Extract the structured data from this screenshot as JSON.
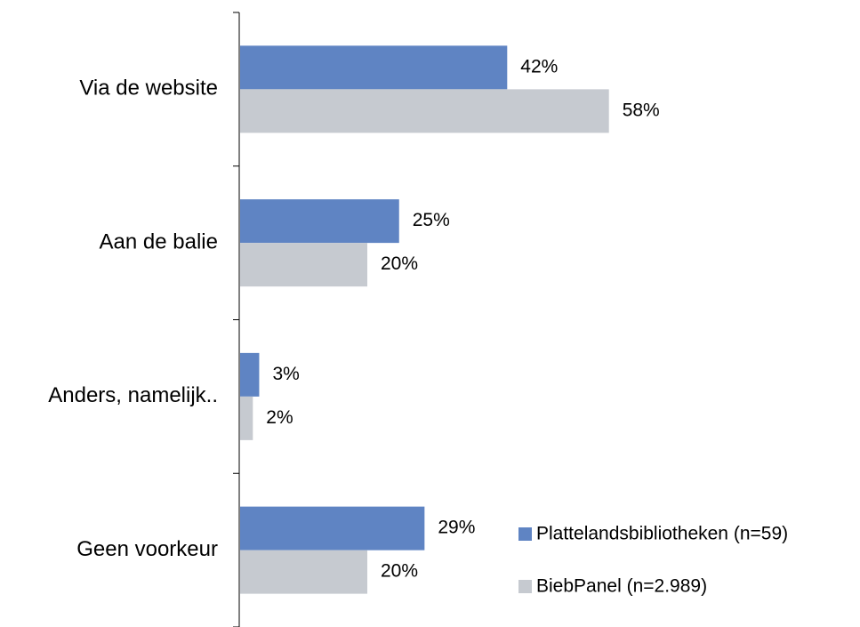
{
  "chart_data": {
    "type": "bar",
    "orientation": "horizontal",
    "categories": [
      "Via de website",
      "Aan de balie",
      "Anders, namelijk..",
      "Geen voorkeur"
    ],
    "series": [
      {
        "name": "Plattelandsbibliotheken (n=59)",
        "color": "#5f84c3",
        "values": [
          42,
          25,
          3,
          29
        ],
        "value_labels": [
          "42%",
          "25%",
          "3%",
          "29%"
        ]
      },
      {
        "name": "BiebPanel (n=2.989)",
        "color": "#c6cad0",
        "values": [
          58,
          20,
          2,
          20
        ],
        "value_labels": [
          "58%",
          "20%",
          "2%",
          "20%"
        ]
      }
    ],
    "legend": "lower right"
  }
}
